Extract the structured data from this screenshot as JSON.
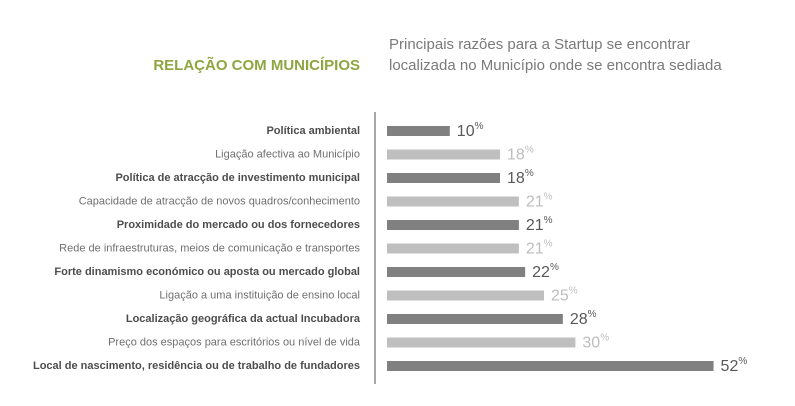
{
  "chart_data": {
    "type": "bar",
    "orientation": "horizontal",
    "title": "RELAÇÃO COM MUNICÍPIOS",
    "subtitle": [
      "Principais razões para a Startup se encontrar",
      "localizada no Município onde se encontra sediada"
    ],
    "categories": [
      "Política ambiental",
      "Ligação afectiva ao Município",
      "Política de atracção de investimento municipal",
      "Capacidade de atracção de novos quadros/conhecimento",
      "Proximidade do mercado ou dos fornecedores",
      "Rede de infraestruturas, meios de comunicação e transportes",
      "Forte dinamismo económico ou aposta ou mercado global",
      "Ligação a uma instituição de ensino local",
      "Localização geográfica da actual Incubadora",
      "Preço dos espaços para escritórios ou nível de vida",
      "Local de nascimento, residência ou de trabalho de fundadores"
    ],
    "values": [
      10,
      18,
      18,
      21,
      21,
      21,
      22,
      25,
      28,
      30,
      52
    ],
    "value_labels": [
      "10%",
      "18%",
      "18%",
      "21%",
      "21%",
      "21%",
      "22%",
      "25%",
      "28%",
      "30%",
      "52%"
    ],
    "colors": [
      "#808080",
      "#bfbfbf",
      "#808080",
      "#bfbfbf",
      "#808080",
      "#bfbfbf",
      "#808080",
      "#bfbfbf",
      "#808080",
      "#bfbfbf",
      "#808080"
    ]
  }
}
